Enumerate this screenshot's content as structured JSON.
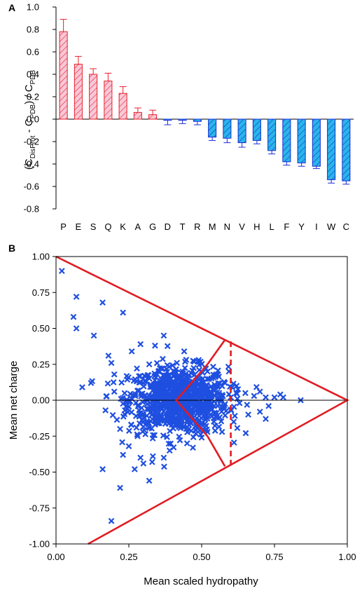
{
  "chart_data": [
    {
      "panel": "A",
      "type": "bar",
      "title": "",
      "xlabel": "",
      "ylabel": {
        "pre": "(C",
        "sub1": "DisProt",
        "mid": " - C",
        "sub2": "PDB",
        "post": ") / C",
        "sub3": "PDB"
      },
      "ylim": [
        -0.8,
        1.0
      ],
      "yticks": [
        "-0.8",
        "-0.6",
        "-0.4",
        "-0.2",
        "0.0",
        "0.2",
        "0.4",
        "0.6",
        "0.8",
        "1.0"
      ],
      "categories": [
        "P",
        "E",
        "S",
        "Q",
        "K",
        "A",
        "G",
        "D",
        "T",
        "R",
        "M",
        "N",
        "V",
        "H",
        "L",
        "F",
        "Y",
        "I",
        "W",
        "C"
      ],
      "values": [
        0.78,
        0.49,
        0.4,
        0.34,
        0.23,
        0.06,
        0.04,
        -0.01,
        -0.01,
        -0.02,
        -0.16,
        -0.17,
        -0.21,
        -0.19,
        -0.28,
        -0.38,
        -0.39,
        -0.42,
        -0.54,
        -0.55
      ],
      "errors": [
        0.11,
        0.07,
        0.05,
        0.07,
        0.06,
        0.04,
        0.04,
        0.04,
        0.03,
        0.03,
        0.03,
        0.04,
        0.04,
        0.03,
        0.03,
        0.03,
        0.03,
        0.02,
        0.03,
        0.03
      ],
      "colors": {
        "positive_fill": "#f8c8d8",
        "positive_edge": "#e8202a",
        "negative_fill": "#29b6e8",
        "negative_edge": "#1a2bd4"
      }
    },
    {
      "panel": "B",
      "type": "scatter",
      "title": "",
      "xlabel": "Mean scaled hydropathy",
      "ylabel": "Mean net charge",
      "xlim": [
        0,
        1
      ],
      "ylim": [
        -1,
        1
      ],
      "xticks": [
        "0.00",
        "0.25",
        "0.50",
        "0.75",
        "1.00"
      ],
      "yticks": [
        "-1.00",
        "-0.75",
        "-0.50",
        "-0.25",
        "0.00",
        "0.25",
        "0.50",
        "0.75",
        "1.00"
      ],
      "marker": "x",
      "marker_color": "#1f4fe0",
      "line_color": "#e11b22",
      "boundary_lines": [
        {
          "style": "solid",
          "points": [
            [
              0,
              1
            ],
            [
              1,
              0
            ],
            [
              0.11,
              -1
            ]
          ]
        },
        {
          "style": "solid",
          "points": [
            [
              0.52,
              0.25
            ],
            [
              0.413,
              0
            ],
            [
              0.52,
              -0.25
            ]
          ]
        },
        {
          "style": "solid",
          "points": [
            [
              0.52,
              0.25
            ],
            [
              0.58,
              0.42
            ]
          ]
        },
        {
          "style": "solid",
          "points": [
            [
              0.52,
              -0.25
            ],
            [
              0.58,
              -0.46
            ]
          ]
        },
        {
          "style": "dashed",
          "points": [
            [
              0.6,
              0.41
            ],
            [
              0.6,
              -0.45
            ]
          ]
        }
      ],
      "cluster": {
        "center": [
          0.42,
          0.0
        ],
        "spread": [
          0.085,
          0.115
        ],
        "count": 900
      },
      "points": [
        [
          0.02,
          0.9
        ],
        [
          0.07,
          0.72
        ],
        [
          0.06,
          0.58
        ],
        [
          0.07,
          0.5
        ],
        [
          0.16,
          0.68
        ],
        [
          0.23,
          0.61
        ],
        [
          0.13,
          0.45
        ],
        [
          0.09,
          0.09
        ],
        [
          0.12,
          0.12
        ],
        [
          0.18,
          0.31
        ],
        [
          0.19,
          0.26
        ],
        [
          0.2,
          0.18
        ],
        [
          0.2,
          0.06
        ],
        [
          0.17,
          -0.07
        ],
        [
          0.22,
          -0.2
        ],
        [
          0.25,
          -0.32
        ],
        [
          0.23,
          -0.38
        ],
        [
          0.16,
          -0.48
        ],
        [
          0.27,
          -0.48
        ],
        [
          0.32,
          -0.56
        ],
        [
          0.22,
          -0.61
        ],
        [
          0.19,
          -0.84
        ],
        [
          0.26,
          0.34
        ],
        [
          0.29,
          0.39
        ],
        [
          0.37,
          0.45
        ],
        [
          0.34,
          0.38
        ],
        [
          0.44,
          0.34
        ],
        [
          0.29,
          -0.4
        ],
        [
          0.3,
          -0.44
        ],
        [
          0.33,
          -0.43
        ],
        [
          0.37,
          -0.4
        ],
        [
          0.39,
          -0.35
        ],
        [
          0.45,
          -0.3
        ],
        [
          0.5,
          -0.26
        ],
        [
          0.28,
          -0.25
        ],
        [
          0.31,
          -0.15
        ],
        [
          0.52,
          0.2
        ],
        [
          0.55,
          0.18
        ],
        [
          0.58,
          0.12
        ],
        [
          0.62,
          0.1
        ],
        [
          0.65,
          0.05
        ],
        [
          0.68,
          0.03
        ],
        [
          0.7,
          0.06
        ],
        [
          0.72,
          0.02
        ],
        [
          0.75,
          0.02
        ],
        [
          0.77,
          0.04
        ],
        [
          0.78,
          0.02
        ],
        [
          0.84,
          0.0
        ],
        [
          0.73,
          -0.04
        ],
        [
          0.7,
          -0.08
        ],
        [
          0.72,
          -0.13
        ],
        [
          0.66,
          -0.1
        ],
        [
          0.61,
          -0.15
        ],
        [
          0.57,
          -0.22
        ],
        [
          0.55,
          -0.12
        ],
        [
          0.53,
          -0.05
        ],
        [
          0.56,
          0.05
        ],
        [
          0.6,
          0.02
        ],
        [
          0.63,
          -0.02
        ],
        [
          0.49,
          0.28
        ],
        [
          0.47,
          -0.33
        ]
      ]
    }
  ]
}
